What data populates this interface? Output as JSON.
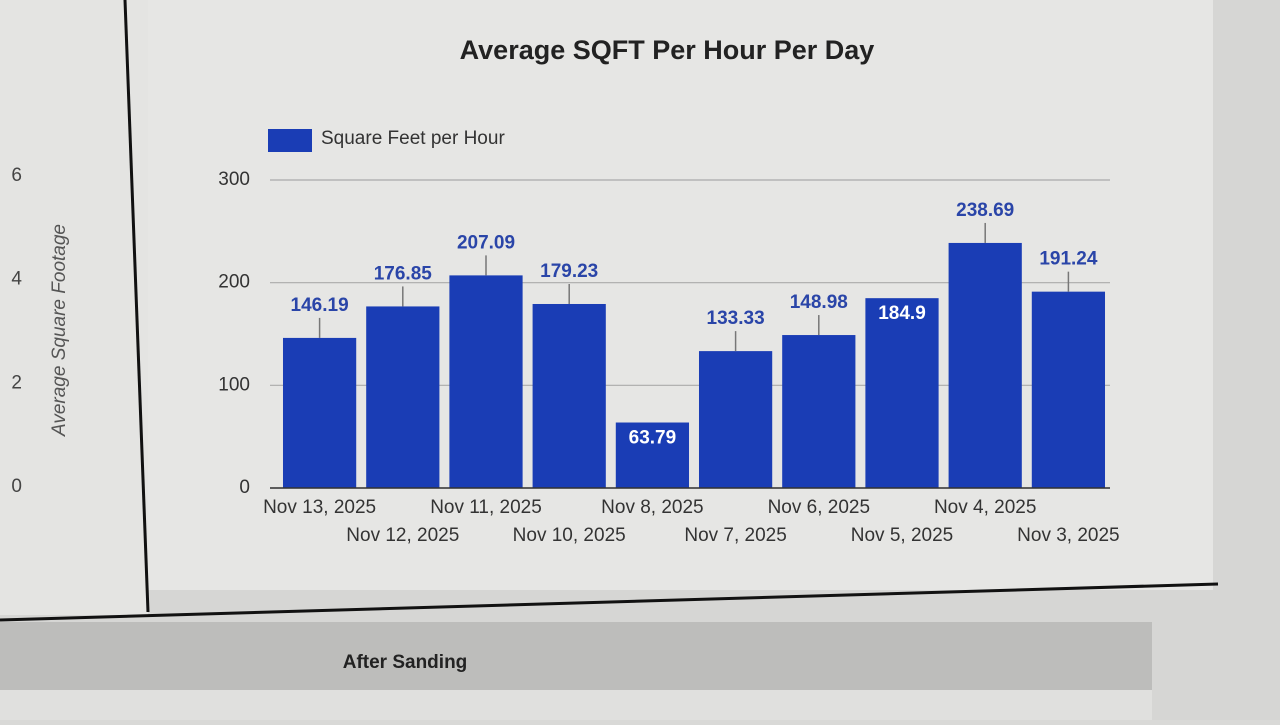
{
  "chart_data": [
    {
      "type": "bar",
      "title": "Average SQFT Per Hour Per Day",
      "categories": [
        "Nov 13, 2025",
        "Nov 12, 2025",
        "Nov 11, 2025",
        "Nov 10, 2025",
        "Nov 8, 2025",
        "Nov 7, 2025",
        "Nov 6, 2025",
        "Nov 5, 2025",
        "Nov 4, 2025",
        "Nov 3, 2025"
      ],
      "series": [
        {
          "name": "Square Feet per Hour",
          "color": "#1a3db5",
          "values": [
            146.19,
            176.85,
            207.09,
            179.23,
            63.79,
            133.33,
            148.98,
            184.9,
            238.69,
            191.24
          ]
        }
      ],
      "ylim": [
        0,
        300
      ],
      "yticks": [
        0,
        100,
        200,
        300
      ],
      "grid": true,
      "legend": "top-left"
    },
    {
      "type": "axis",
      "ylabel": "Average Square Footage",
      "ylim": [
        0,
        6
      ],
      "yticks": [
        0,
        2,
        4,
        6
      ]
    }
  ],
  "section": {
    "title": "After Sanding"
  }
}
